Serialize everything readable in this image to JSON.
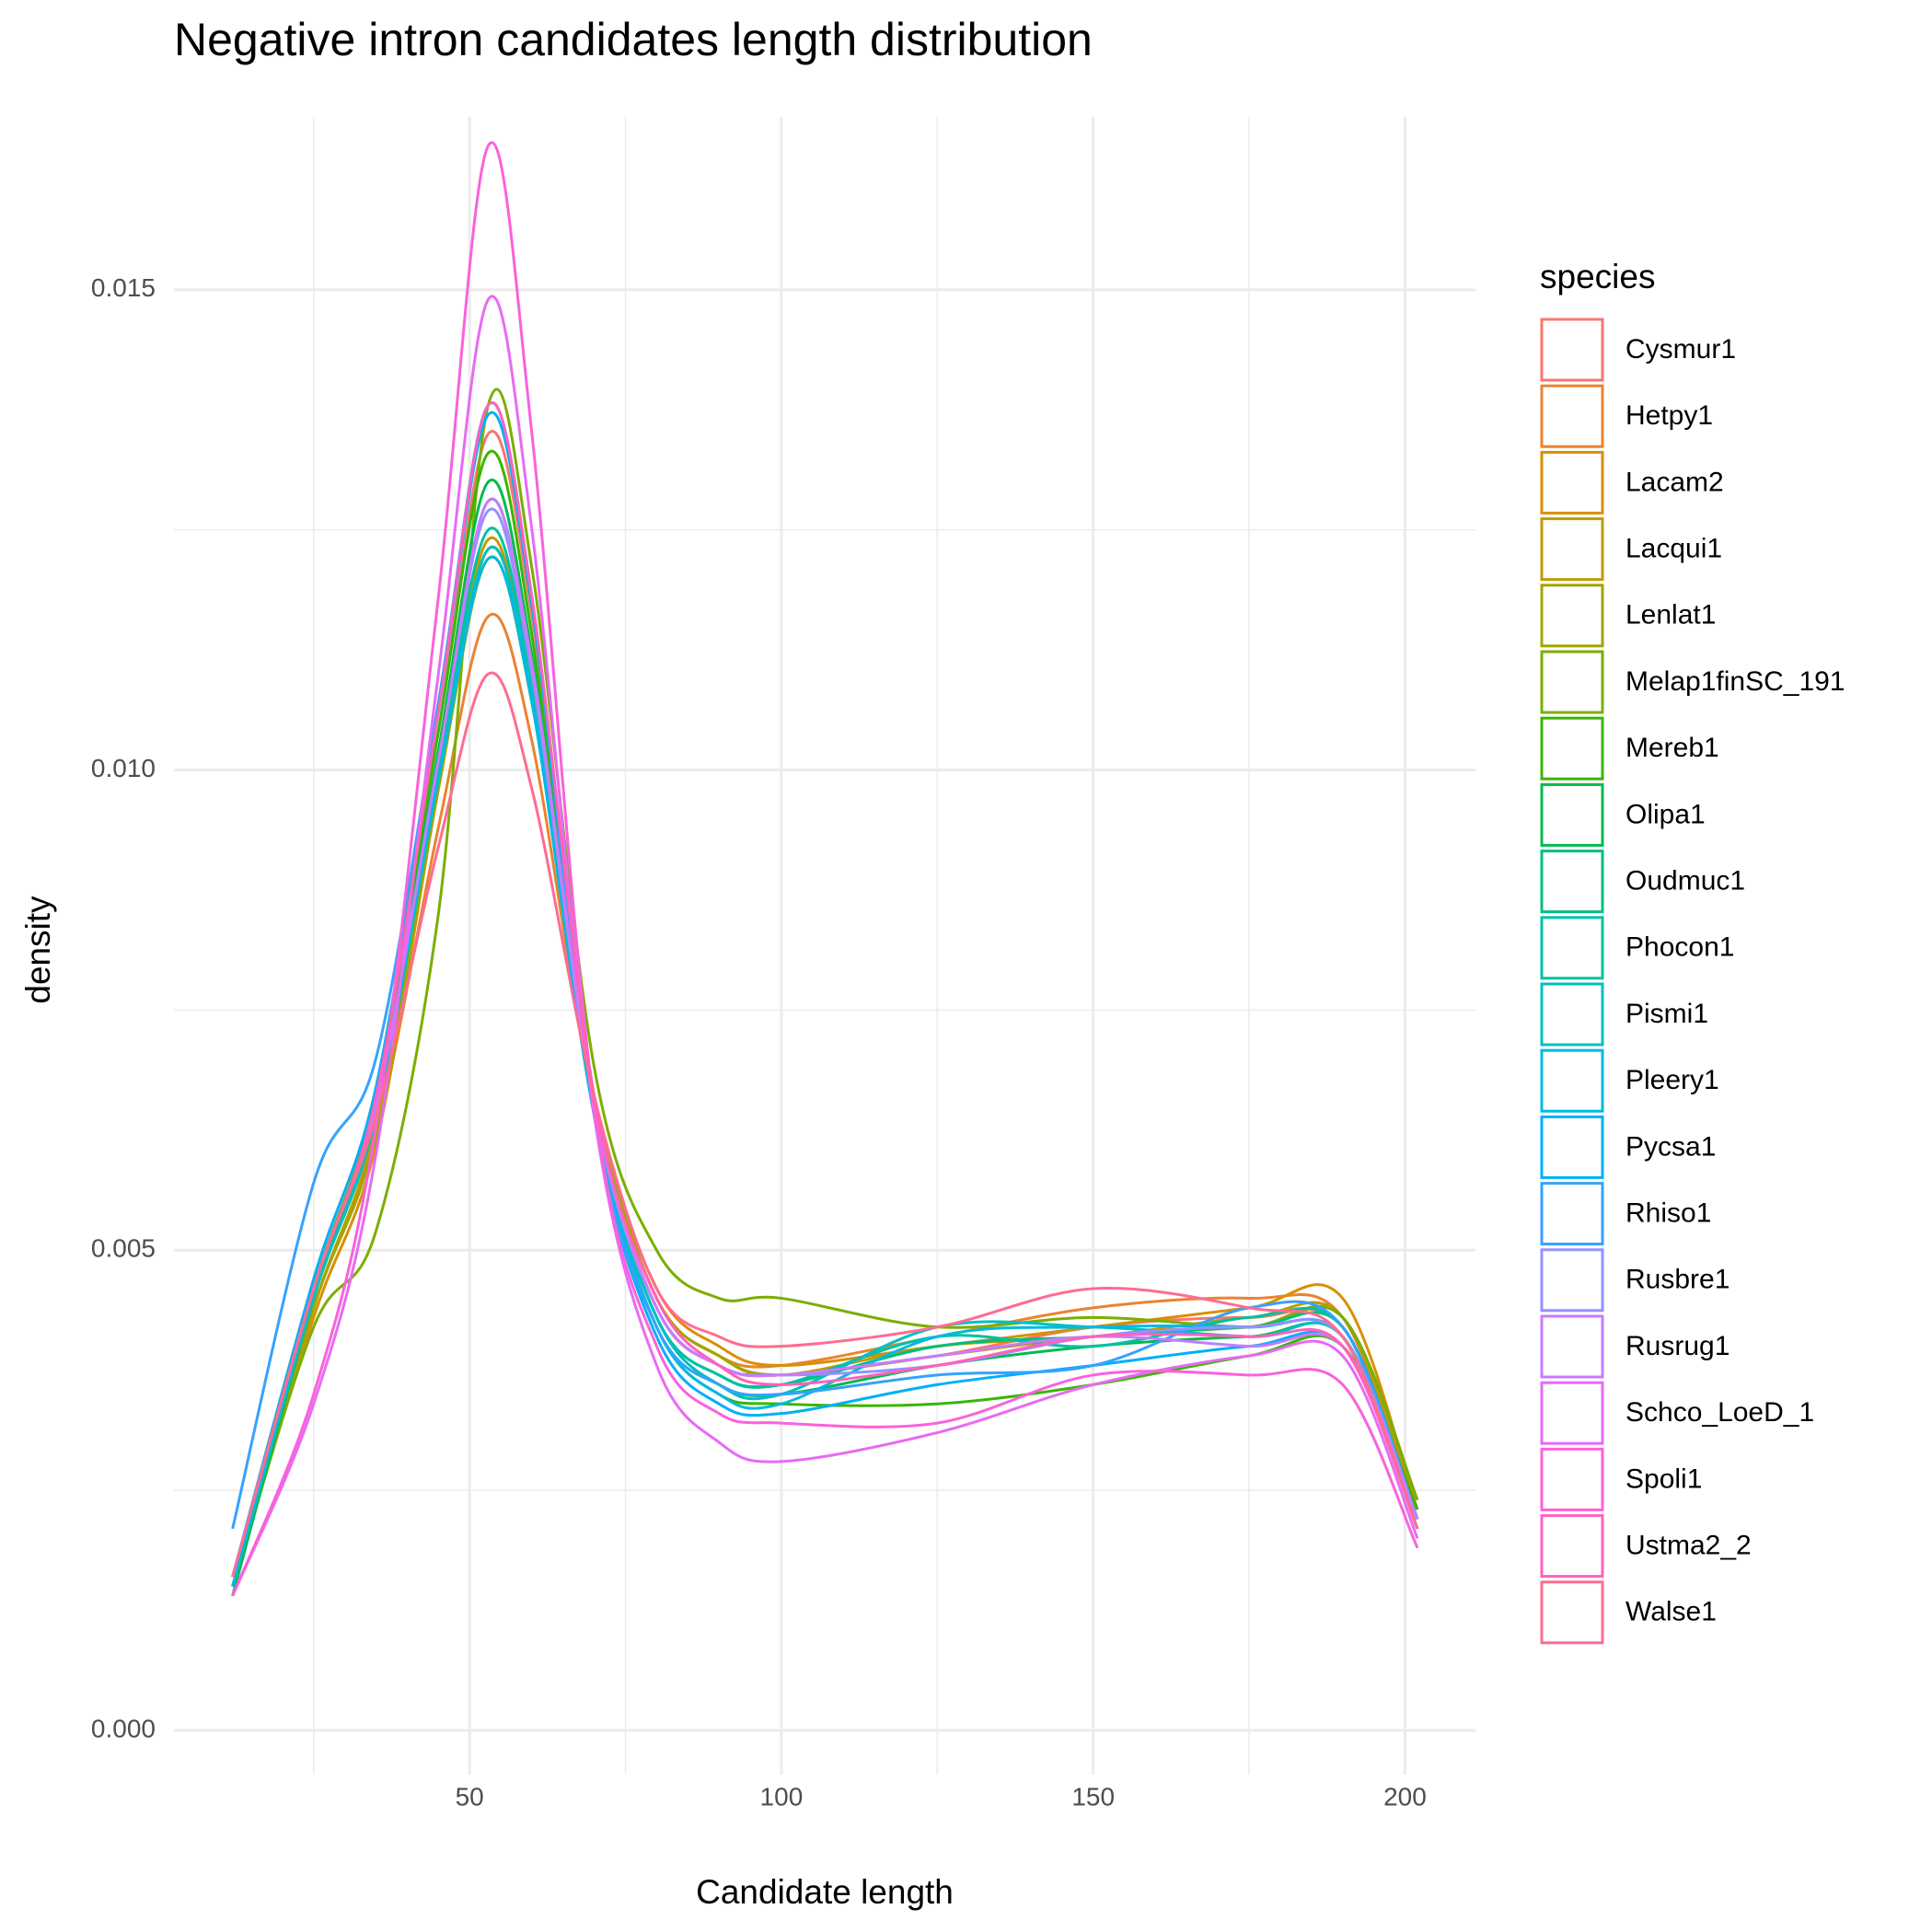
{
  "chart_data": {
    "type": "line",
    "title": "Negative intron candidates length distribution",
    "x_label": "Candidate length",
    "y_label": "density",
    "legend_title": "species",
    "legend_position": "right",
    "grid": true,
    "xlim": [
      2.6,
      211.3
    ],
    "ylim": [
      -0.00046,
      0.0168
    ],
    "xticks": [
      50,
      100,
      150,
      200
    ],
    "x_minor_ticks": [
      25,
      75,
      125,
      175
    ],
    "yticks": [
      {
        "value": 0,
        "label": "0.000"
      },
      {
        "value": 0.005,
        "label": "0.005"
      },
      {
        "value": 0.01,
        "label": "0.010"
      },
      {
        "value": 0.015,
        "label": "0.015"
      }
    ],
    "y_minor_ticks": [
      0.0025,
      0.0075,
      0.0125
    ],
    "x": [
      12,
      25,
      35,
      45,
      53,
      60,
      70,
      80,
      90,
      100,
      125,
      150,
      175,
      190,
      202
    ],
    "series": [
      {
        "name": "Cysmur1",
        "color": "#F8766D",
        "values": [
          0.0016,
          0.0046,
          0.0066,
          0.0104,
          0.0135,
          0.0116,
          0.0066,
          0.0044,
          0.0038,
          0.0037,
          0.0039,
          0.0042,
          0.0043,
          0.0042,
          0.0022
        ]
      },
      {
        "name": "Hetpy1",
        "color": "#EA8331",
        "values": [
          0.0015,
          0.0044,
          0.0062,
          0.0094,
          0.0116,
          0.0103,
          0.0065,
          0.0045,
          0.0039,
          0.0038,
          0.0041,
          0.0044,
          0.0045,
          0.0043,
          0.0022
        ]
      },
      {
        "name": "Lacam2",
        "color": "#D89000",
        "values": [
          0.0015,
          0.0043,
          0.0061,
          0.0098,
          0.0123,
          0.0108,
          0.0066,
          0.0046,
          0.004,
          0.0038,
          0.004,
          0.0042,
          0.0044,
          0.0045,
          0.0023
        ]
      },
      {
        "name": "Lacqui1",
        "color": "#C09B00",
        "values": [
          0.0015,
          0.0044,
          0.0063,
          0.0099,
          0.0124,
          0.0108,
          0.0066,
          0.0045,
          0.0039,
          0.0037,
          0.004,
          0.0041,
          0.0043,
          0.0043,
          0.0023
        ]
      },
      {
        "name": "Lenlat1",
        "color": "#A3A500",
        "values": [
          0.0015,
          0.0044,
          0.0062,
          0.0098,
          0.0122,
          0.0107,
          0.0066,
          0.0045,
          0.0039,
          0.0037,
          0.0039,
          0.0041,
          0.0042,
          0.0043,
          0.0024
        ]
      },
      {
        "name": "Melap1finSC_191",
        "color": "#7CAE00",
        "values": [
          0.0015,
          0.0042,
          0.0052,
          0.0085,
          0.0138,
          0.0121,
          0.0069,
          0.005,
          0.0045,
          0.0045,
          0.0042,
          0.0043,
          0.0042,
          0.0043,
          0.0024
        ]
      },
      {
        "name": "Mereb1",
        "color": "#39B600",
        "values": [
          0.0014,
          0.0046,
          0.0066,
          0.0104,
          0.0133,
          0.0114,
          0.0064,
          0.0042,
          0.0035,
          0.0034,
          0.0034,
          0.0036,
          0.0039,
          0.004,
          0.0023
        ]
      },
      {
        "name": "Olipa1",
        "color": "#00BB4E",
        "values": [
          0.0014,
          0.0045,
          0.0065,
          0.0102,
          0.013,
          0.0112,
          0.0064,
          0.0042,
          0.0036,
          0.0035,
          0.0038,
          0.004,
          0.0041,
          0.0041,
          0.0022
        ]
      },
      {
        "name": "Oudmuc1",
        "color": "#00BF7D",
        "values": [
          0.0015,
          0.0045,
          0.0064,
          0.0101,
          0.0128,
          0.0111,
          0.0065,
          0.0043,
          0.0037,
          0.0036,
          0.004,
          0.0041,
          0.0042,
          0.0042,
          0.0022
        ]
      },
      {
        "name": "Phocon1",
        "color": "#00C1A3",
        "values": [
          0.0015,
          0.0045,
          0.0064,
          0.01,
          0.0125,
          0.0109,
          0.0065,
          0.0043,
          0.0037,
          0.0036,
          0.0041,
          0.004,
          0.0043,
          0.0042,
          0.0022
        ]
      },
      {
        "name": "Pismi1",
        "color": "#00BFC4",
        "values": [
          0.0015,
          0.0045,
          0.0064,
          0.0099,
          0.0123,
          0.0108,
          0.0065,
          0.0043,
          0.0036,
          0.0035,
          0.0042,
          0.0042,
          0.0041,
          0.0041,
          0.0021
        ]
      },
      {
        "name": "Pleery1",
        "color": "#00BAE0",
        "values": [
          0.0015,
          0.0046,
          0.0065,
          0.0099,
          0.0122,
          0.0107,
          0.0064,
          0.0042,
          0.0035,
          0.0034,
          0.0041,
          0.0042,
          0.0042,
          0.0041,
          0.0021
        ]
      },
      {
        "name": "Pycsa1",
        "color": "#00B0F6",
        "values": [
          0.0016,
          0.0047,
          0.0067,
          0.0106,
          0.0137,
          0.0117,
          0.0064,
          0.0041,
          0.0034,
          0.0033,
          0.0036,
          0.0038,
          0.004,
          0.004,
          0.0021
        ]
      },
      {
        "name": "Rhiso1",
        "color": "#35A2FF",
        "values": [
          0.0021,
          0.0057,
          0.007,
          0.0107,
          0.0138,
          0.0118,
          0.0064,
          0.0042,
          0.0036,
          0.0035,
          0.0037,
          0.0038,
          0.0044,
          0.0042,
          0.0022
        ]
      },
      {
        "name": "Rusbre1",
        "color": "#9590FF",
        "values": [
          0.0016,
          0.0046,
          0.0065,
          0.0101,
          0.0127,
          0.011,
          0.0065,
          0.0044,
          0.0038,
          0.0037,
          0.0038,
          0.0041,
          0.0042,
          0.0041,
          0.0022
        ]
      },
      {
        "name": "Rusrug1",
        "color": "#C77CFF",
        "values": [
          0.0016,
          0.0046,
          0.0065,
          0.0101,
          0.0128,
          0.0111,
          0.0065,
          0.0044,
          0.0038,
          0.0037,
          0.0039,
          0.0041,
          0.004,
          0.004,
          0.0022
        ]
      },
      {
        "name": "Schco_LoeD_1",
        "color": "#E76BF3",
        "values": [
          0.0014,
          0.0034,
          0.006,
          0.011,
          0.0149,
          0.0125,
          0.0064,
          0.0038,
          0.003,
          0.0028,
          0.0031,
          0.0036,
          0.0039,
          0.0039,
          0.002
        ]
      },
      {
        "name": "Spoli1",
        "color": "#FA62DB",
        "values": [
          0.0014,
          0.0035,
          0.0063,
          0.0118,
          0.0165,
          0.0135,
          0.0065,
          0.004,
          0.0033,
          0.0032,
          0.0032,
          0.0037,
          0.0037,
          0.0036,
          0.0019
        ]
      },
      {
        "name": "Ustma2_2",
        "color": "#FF62BC",
        "values": [
          0.0016,
          0.0046,
          0.0066,
          0.0106,
          0.0138,
          0.0118,
          0.0066,
          0.0045,
          0.0038,
          0.0036,
          0.0038,
          0.0041,
          0.0041,
          0.004,
          0.0021
        ]
      },
      {
        "name": "Walse1",
        "color": "#FF6C91",
        "values": [
          0.0016,
          0.0046,
          0.0064,
          0.0092,
          0.011,
          0.0098,
          0.0066,
          0.0046,
          0.0041,
          0.004,
          0.0042,
          0.0046,
          0.0044,
          0.0041,
          0.0021
        ]
      }
    ]
  }
}
